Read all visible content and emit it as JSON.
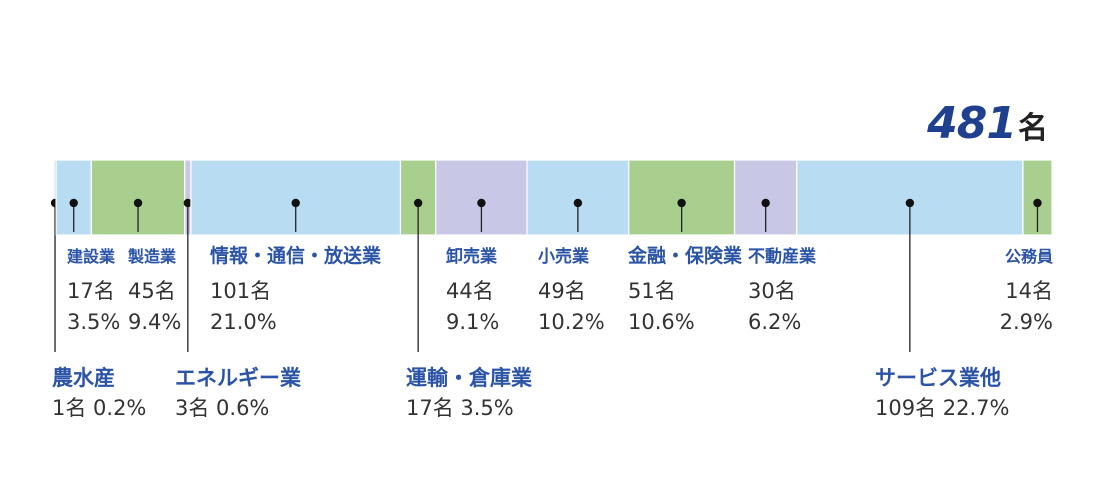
{
  "total": {
    "value": "481",
    "unit": "名"
  },
  "colors": {
    "blue": "#b8dcf2",
    "green": "#a9cf8f",
    "purple": "#c8c8e6",
    "label": "#2b54a6",
    "text": "#333333"
  },
  "chart_data": {
    "type": "bar",
    "orientation": "horizontal-stacked",
    "total": 481,
    "unit": "名",
    "segments": [
      {
        "name": "農水産",
        "count": "1名",
        "pct": "0.2%",
        "value": 1,
        "color": "blue",
        "label_row": "lower"
      },
      {
        "name": "建設業",
        "count": "17名",
        "pct": "3.5%",
        "value": 17,
        "color": "blue",
        "label_row": "upper"
      },
      {
        "name": "製造業",
        "count": "45名",
        "pct": "9.4%",
        "value": 45,
        "color": "green",
        "label_row": "upper"
      },
      {
        "name": "エネルギー業",
        "count": "3名",
        "pct": "0.6%",
        "value": 3,
        "color": "purple",
        "label_row": "lower"
      },
      {
        "name": "情報・通信・放送業",
        "count": "101名",
        "pct": "21.0%",
        "value": 101,
        "color": "blue",
        "label_row": "upper"
      },
      {
        "name": "運輸・倉庫業",
        "count": "17名",
        "pct": "3.5%",
        "value": 17,
        "color": "green",
        "label_row": "lower"
      },
      {
        "name": "卸売業",
        "count": "44名",
        "pct": "9.1%",
        "value": 44,
        "color": "purple",
        "label_row": "upper"
      },
      {
        "name": "小売業",
        "count": "49名",
        "pct": "10.2%",
        "value": 49,
        "color": "blue",
        "label_row": "upper"
      },
      {
        "name": "金融・保険業",
        "count": "51名",
        "pct": "10.6%",
        "value": 51,
        "color": "green",
        "label_row": "upper"
      },
      {
        "name": "不動産業",
        "count": "30名",
        "pct": "6.2%",
        "value": 30,
        "color": "purple",
        "label_row": "upper"
      },
      {
        "name": "サービス業他",
        "count": "109名",
        "pct": "22.7%",
        "value": 109,
        "color": "blue",
        "label_row": "lower"
      },
      {
        "name": "公務員",
        "count": "14名",
        "pct": "2.9%",
        "value": 14,
        "color": "green",
        "label_row": "upper"
      }
    ]
  }
}
